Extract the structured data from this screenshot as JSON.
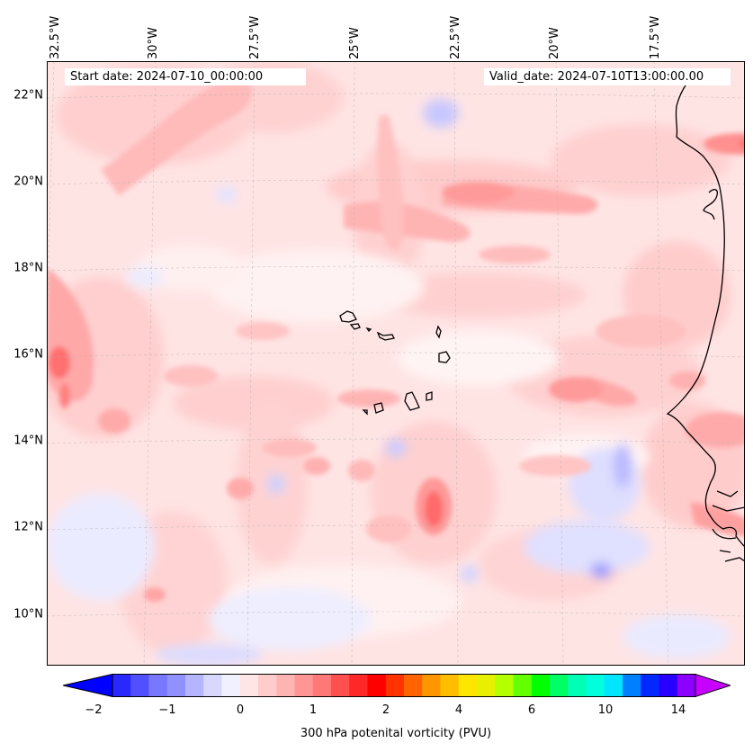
{
  "map": {
    "lon_labels": [
      "32.5°W",
      "30°W",
      "27.5°W",
      "25°W",
      "22.5°W",
      "20°W",
      "17.5°W"
    ],
    "lat_labels": [
      "22°N",
      "20°N",
      "18°N",
      "16°N",
      "14°N",
      "12°N",
      "10°N"
    ],
    "start_date": "Start date: 2024-07-10_00:00:00",
    "valid_date": "Valid_date: 2024-07-10T13:00:00.00"
  },
  "colorbar": {
    "ticks": [
      "−2",
      "−1",
      "0",
      "1",
      "2",
      "4",
      "6",
      "10",
      "14"
    ],
    "label": "300 hPa potenital vorticity (PVU)",
    "colors": [
      "#0000ff",
      "#2828ff",
      "#5050ff",
      "#7878ff",
      "#9090ff",
      "#b4b4ff",
      "#d8d8ff",
      "#f0f0ff",
      "#ffe6e6",
      "#ffcccc",
      "#ffb4b4",
      "#ff9696",
      "#ff7878",
      "#ff5050",
      "#ff2828",
      "#ff0000",
      "#ff3200",
      "#ff6400",
      "#ff9600",
      "#ffbe00",
      "#ffe600",
      "#e6f000",
      "#b4ff00",
      "#64ff00",
      "#00ff00",
      "#00ff64",
      "#00ffb4",
      "#00ffdc",
      "#00e6ff",
      "#0080ff",
      "#0028ff",
      "#2800ff",
      "#8c00ff",
      "#c800ff"
    ]
  },
  "chart_data": {
    "type": "heatmap",
    "title": "",
    "variable": "300 hPa potenital vorticity (PVU)",
    "lon_range_degW": [
      33,
      15.5
    ],
    "lat_range_degN": [
      8.8,
      22.8
    ],
    "colorbar_ticks": [
      -2,
      -1,
      0,
      1,
      2,
      4,
      6,
      10,
      14
    ],
    "features": [
      {
        "name": "Cape Verde Islands",
        "lat": 15.5,
        "lon": -24
      },
      {
        "name": "African coast",
        "lat": 16,
        "lon": -16.5
      }
    ]
  }
}
